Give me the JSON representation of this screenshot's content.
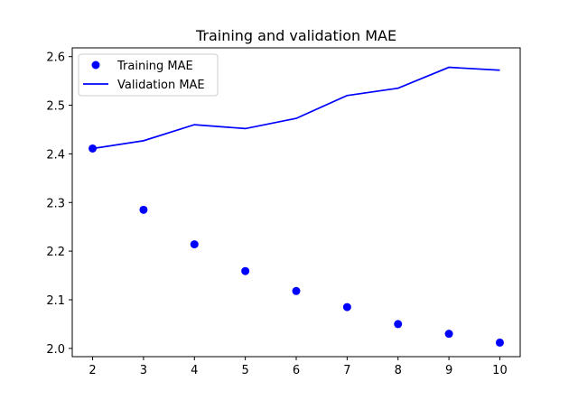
{
  "chart_data": {
    "type": "line",
    "title": "Training and validation MAE",
    "xlabel": "",
    "ylabel": "",
    "x": [
      2,
      3,
      4,
      5,
      6,
      7,
      8,
      9,
      10
    ],
    "xticks": [
      "2",
      "3",
      "4",
      "5",
      "6",
      "7",
      "8",
      "9",
      "10"
    ],
    "yticks": [
      "2.0",
      "2.1",
      "2.2",
      "2.3",
      "2.4",
      "2.5",
      "2.6"
    ],
    "xlim": [
      1.6,
      10.4
    ],
    "ylim": [
      1.983,
      2.618
    ],
    "grid": false,
    "legend_position": "upper-left",
    "series": [
      {
        "name": "Training MAE",
        "style": "markers",
        "color": "#0000ff",
        "values": [
          2.411,
          2.285,
          2.214,
          2.159,
          2.118,
          2.085,
          2.05,
          2.03,
          2.012
        ]
      },
      {
        "name": "Validation MAE",
        "style": "line",
        "color": "#0000ff",
        "values": [
          2.411,
          2.427,
          2.46,
          2.452,
          2.473,
          2.52,
          2.535,
          2.578,
          2.572
        ]
      }
    ]
  }
}
